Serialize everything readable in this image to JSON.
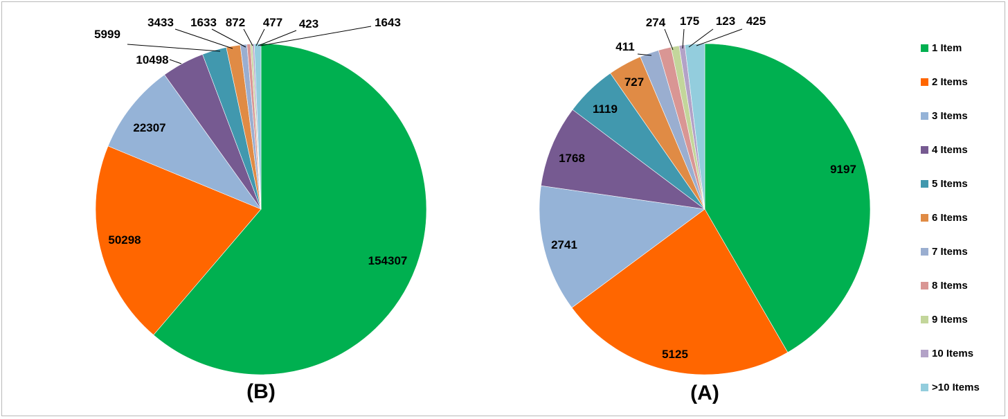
{
  "chart_data": [
    {
      "type": "pie",
      "caption": "(B)",
      "categories": [
        "1 Item",
        "2 Items",
        "3 Items",
        "4 Items",
        "5 Items",
        "6 Items",
        "7 Items",
        "8 Items",
        "9 Items",
        "10 Items",
        ">10 Items"
      ],
      "values": [
        154307,
        50298,
        22307,
        10498,
        5999,
        3433,
        1633,
        872,
        477,
        423,
        1643
      ],
      "data_labels": [
        "154307",
        "50298",
        "22307",
        "10498",
        "5999",
        "3433",
        "1633",
        "872",
        "477",
        "423",
        "1643"
      ]
    },
    {
      "type": "pie",
      "caption": "(A)",
      "categories": [
        "1 Item",
        "2 Items",
        "3 Items",
        "4 Items",
        "5 Items",
        "6 Items",
        "7 Items",
        "8 Items",
        "9 Items",
        "10 Items",
        ">10 Items"
      ],
      "values": [
        9197,
        5125,
        2741,
        1768,
        1119,
        727,
        411,
        274,
        175,
        123,
        425
      ],
      "data_labels": [
        "9197",
        "5125",
        "2741",
        "1768",
        "1119",
        "727",
        "411",
        "274",
        "175",
        "123",
        "425"
      ]
    }
  ],
  "legend": {
    "placement": "right",
    "items": [
      {
        "label": "1 Item",
        "color": "#00b050"
      },
      {
        "label": "2 Items",
        "color": "#ff6600"
      },
      {
        "label": "3 Items",
        "color": "#95b3d7"
      },
      {
        "label": "4 Items",
        "color": "#765a91"
      },
      {
        "label": "5 Items",
        "color": "#4198ae"
      },
      {
        "label": "6 Items",
        "color": "#e08b45"
      },
      {
        "label": "7 Items",
        "color": "#9aaed0"
      },
      {
        "label": "8 Items",
        "color": "#d99694"
      },
      {
        "label": "9 Items",
        "color": "#c3d69b"
      },
      {
        "label": "10 Items",
        "color": "#b3a2c7"
      },
      {
        "label": ">10 Items",
        "color": "#93cddd"
      }
    ]
  }
}
